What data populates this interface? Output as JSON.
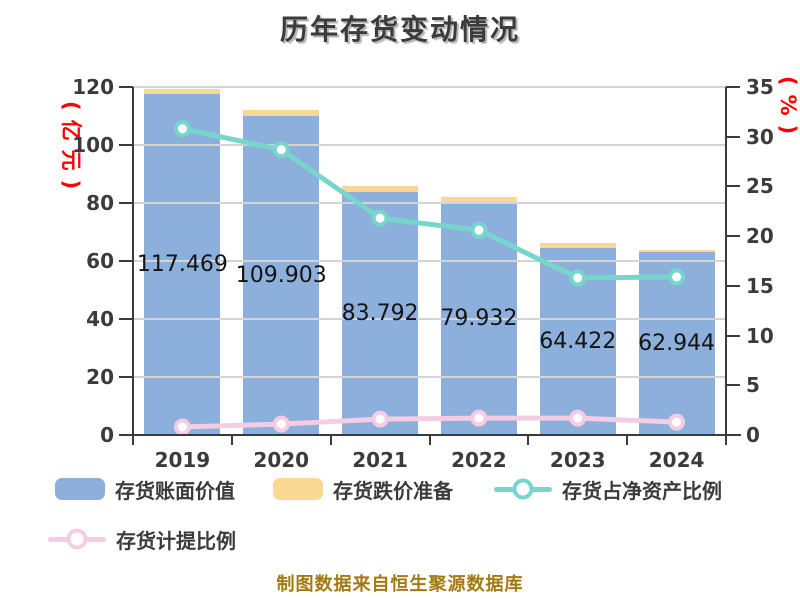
{
  "chart_data": {
    "type": "bar",
    "title": "历年存货变动情况",
    "categories": [
      "2019",
      "2020",
      "2021",
      "2022",
      "2023",
      "2024"
    ],
    "series": [
      {
        "name": "存货账面价值",
        "type": "bar",
        "stack": "inventory",
        "y_axis": "left",
        "color": "#8cafdb",
        "values": [
          117.469,
          109.903,
          83.792,
          79.932,
          64.422,
          62.944
        ],
        "data_labels": [
          "117.469",
          "109.903",
          "83.792",
          "79.932",
          "64.422",
          "62.944"
        ]
      },
      {
        "name": "存货跌价准备",
        "type": "bar",
        "stack": "inventory",
        "y_axis": "left",
        "color": "#fad894",
        "values": [
          2.0,
          2.0,
          2.1,
          2.0,
          1.7,
          1.0
        ],
        "values_note": "estimated from bar pixels; no labels shown"
      },
      {
        "name": "存货占净资产比例",
        "type": "line",
        "y_axis": "right",
        "color": "#76d6cc",
        "marker": "circle-white-fill",
        "values": [
          30.8,
          28.7,
          21.8,
          20.6,
          15.8,
          15.9
        ],
        "values_note": "estimated from right axis"
      },
      {
        "name": "存货计提比例",
        "type": "line",
        "y_axis": "right",
        "color": "#f4cde4",
        "marker": "circle-white-fill",
        "values": [
          0.8,
          1.1,
          1.6,
          1.7,
          1.7,
          1.3
        ],
        "values_note": "estimated from right axis"
      }
    ],
    "left_axis": {
      "label": "(亿元)",
      "ticks": [
        0,
        20,
        40,
        60,
        80,
        100,
        120
      ],
      "lim": [
        0,
        120
      ]
    },
    "right_axis": {
      "label": "(%)",
      "ticks": [
        0,
        5,
        10,
        15,
        20,
        25,
        30,
        35
      ],
      "lim": [
        0,
        35
      ]
    },
    "grid": true,
    "legend_position": "bottom"
  },
  "legend": {
    "items": [
      {
        "label": "存货账面价值",
        "swatch": "bar"
      },
      {
        "label": "存货跌价准备",
        "swatch": "bar"
      },
      {
        "label": "存货占净资产比例",
        "swatch": "line"
      },
      {
        "label": "存货计提比例",
        "swatch": "line"
      }
    ]
  },
  "footer": "制图数据来自恒生聚源数据库",
  "colors": {
    "title": "#3b3b3b",
    "axis": "#3b3b3b",
    "grid": "#d4d4d4",
    "data_label": "#141414",
    "unit_label": "#ff0000",
    "footer": "#a37a12",
    "background": "#ffffff"
  }
}
